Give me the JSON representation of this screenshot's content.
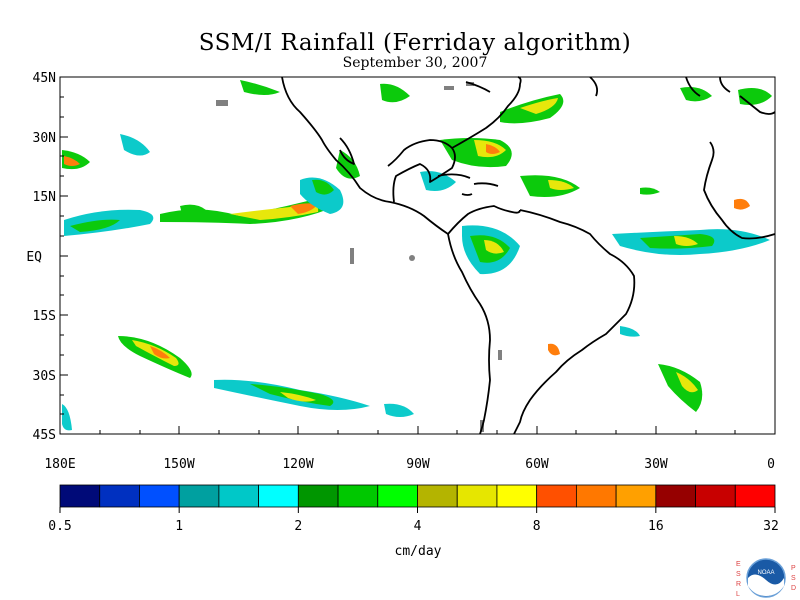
{
  "title": "SSM/I Rainfall (Ferriday algorithm)",
  "subtitle": "September 30, 2007",
  "lat_labels": [
    "45N",
    "30N",
    "15N",
    "EQ",
    "15S",
    "30S",
    "45S"
  ],
  "lon_labels": [
    "180E",
    "150W",
    "120W",
    "90W",
    "60W",
    "30W",
    "0"
  ],
  "colorbar": {
    "colors": [
      "#000a78",
      "#0030c0",
      "#0050ff",
      "#00a0a0",
      "#00c8c8",
      "#00ffff",
      "#009600",
      "#00c800",
      "#00ff00",
      "#b4b400",
      "#e6e600",
      "#ffff00",
      "#ff5000",
      "#ff7800",
      "#ffa000",
      "#960000",
      "#c80000",
      "#ff0000"
    ],
    "tick_labels": [
      "0.5",
      "1",
      "2",
      "4",
      "8",
      "16",
      "32"
    ],
    "unit_label": "cm/day"
  },
  "logo": {
    "left_letters": [
      "E",
      "S",
      "R",
      "L"
    ],
    "right_letters": [
      "P",
      "S",
      "D"
    ],
    "emblem_text": "NOAA"
  }
}
